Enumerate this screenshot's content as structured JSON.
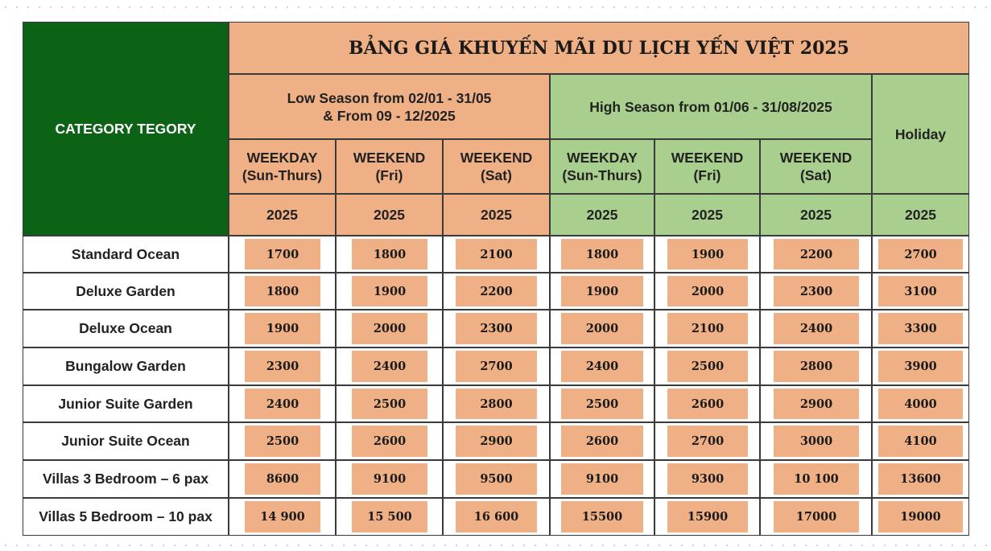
{
  "title": "BẢNG GIÁ KHUYẾN MÃI DU LỊCH YẾN VIỆT 2025",
  "category_header": "CATEGORY TEGORY",
  "low_season": "Low Season from 02/01 - 31/05\n& From 09 - 12/2025",
  "low_season_line1": "Low Season from 02/01 - 31/05",
  "low_season_line2": "& From 09 - 12/2025",
  "high_season": "High Season from 01/06 - 31/08/2025",
  "holiday": "Holiday",
  "subheaders": [
    {
      "line1": "WEEKDAY",
      "line2": "(Sun-Thurs)"
    },
    {
      "line1": "WEEKEND",
      "line2": "(Fri)"
    },
    {
      "line1": "WEEKEND",
      "line2": "(Sat)"
    },
    {
      "line1": "WEEKDAY",
      "line2": "(Sun-Thurs)"
    },
    {
      "line1": "WEEKEND",
      "line2": "(Fri)"
    },
    {
      "line1": "WEEKEND",
      "line2": "(Sat)"
    }
  ],
  "year": "2025",
  "rows": [
    {
      "name": "Standard Ocean",
      "prices": [
        "1700",
        "1800",
        "2100",
        "1800",
        "1900",
        "2200",
        "2700"
      ]
    },
    {
      "name": "Deluxe Garden",
      "prices": [
        "1800",
        "1900",
        "2200",
        "1900",
        "2000",
        "2300",
        "3100"
      ]
    },
    {
      "name": "Deluxe Ocean",
      "prices": [
        "1900",
        "2000",
        "2300",
        "2000",
        "2100",
        "2400",
        "3300"
      ]
    },
    {
      "name": "Bungalow Garden",
      "prices": [
        "2300",
        "2400",
        "2700",
        "2400",
        "2500",
        "2800",
        "3900"
      ]
    },
    {
      "name": "Junior Suite Garden",
      "prices": [
        "2400",
        "2500",
        "2800",
        "2500",
        "2600",
        "2900",
        "4000"
      ]
    },
    {
      "name": "Junior Suite Ocean",
      "prices": [
        "2500",
        "2600",
        "2900",
        "2600",
        "2700",
        "3000",
        "4100"
      ]
    },
    {
      "name": "Villas 3 Bedroom – 6 pax",
      "prices": [
        "8600",
        "9100",
        "9500",
        "9100",
        "9300",
        "10 100",
        "13600"
      ]
    },
    {
      "name": "Villas 5 Bedroom – 10 pax",
      "prices": [
        "14 900",
        "15 500",
        "16 600",
        "15500",
        "15900",
        "17000",
        "19000"
      ]
    }
  ],
  "colors": {
    "dark_green": "#0d6315",
    "orange": "#f0b086",
    "light_green": "#a9cf8e"
  }
}
